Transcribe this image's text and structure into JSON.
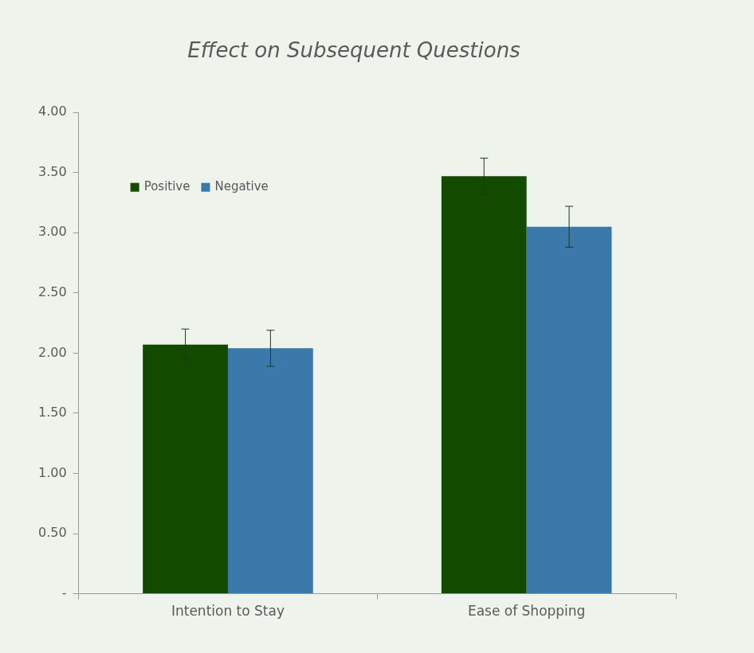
{
  "chart_data": {
    "type": "bar",
    "title": "Effect on Subsequent Questions",
    "categories": [
      "Intention to Stay",
      "Ease of Shopping"
    ],
    "series": [
      {
        "name": "Positive",
        "color": "#124a00",
        "values": [
          2.07,
          3.47
        ],
        "errors": [
          0.13,
          0.15
        ]
      },
      {
        "name": "Negative",
        "color": "#3c79ab",
        "values": [
          2.04,
          3.05
        ],
        "errors": [
          0.15,
          0.17
        ]
      }
    ],
    "ylim": [
      0,
      4
    ],
    "yticks": [
      {
        "value": 0,
        "label": "-"
      },
      {
        "value": 0.5,
        "label": "0.50"
      },
      {
        "value": 1,
        "label": "1.00"
      },
      {
        "value": 1.5,
        "label": "1.50"
      },
      {
        "value": 2,
        "label": "2.00"
      },
      {
        "value": 2.5,
        "label": "2.50"
      },
      {
        "value": 3,
        "label": "3.00"
      },
      {
        "value": 3.5,
        "label": "3.50"
      },
      {
        "value": 4,
        "label": "4.00"
      }
    ],
    "grid": false,
    "legend": "upper left"
  }
}
